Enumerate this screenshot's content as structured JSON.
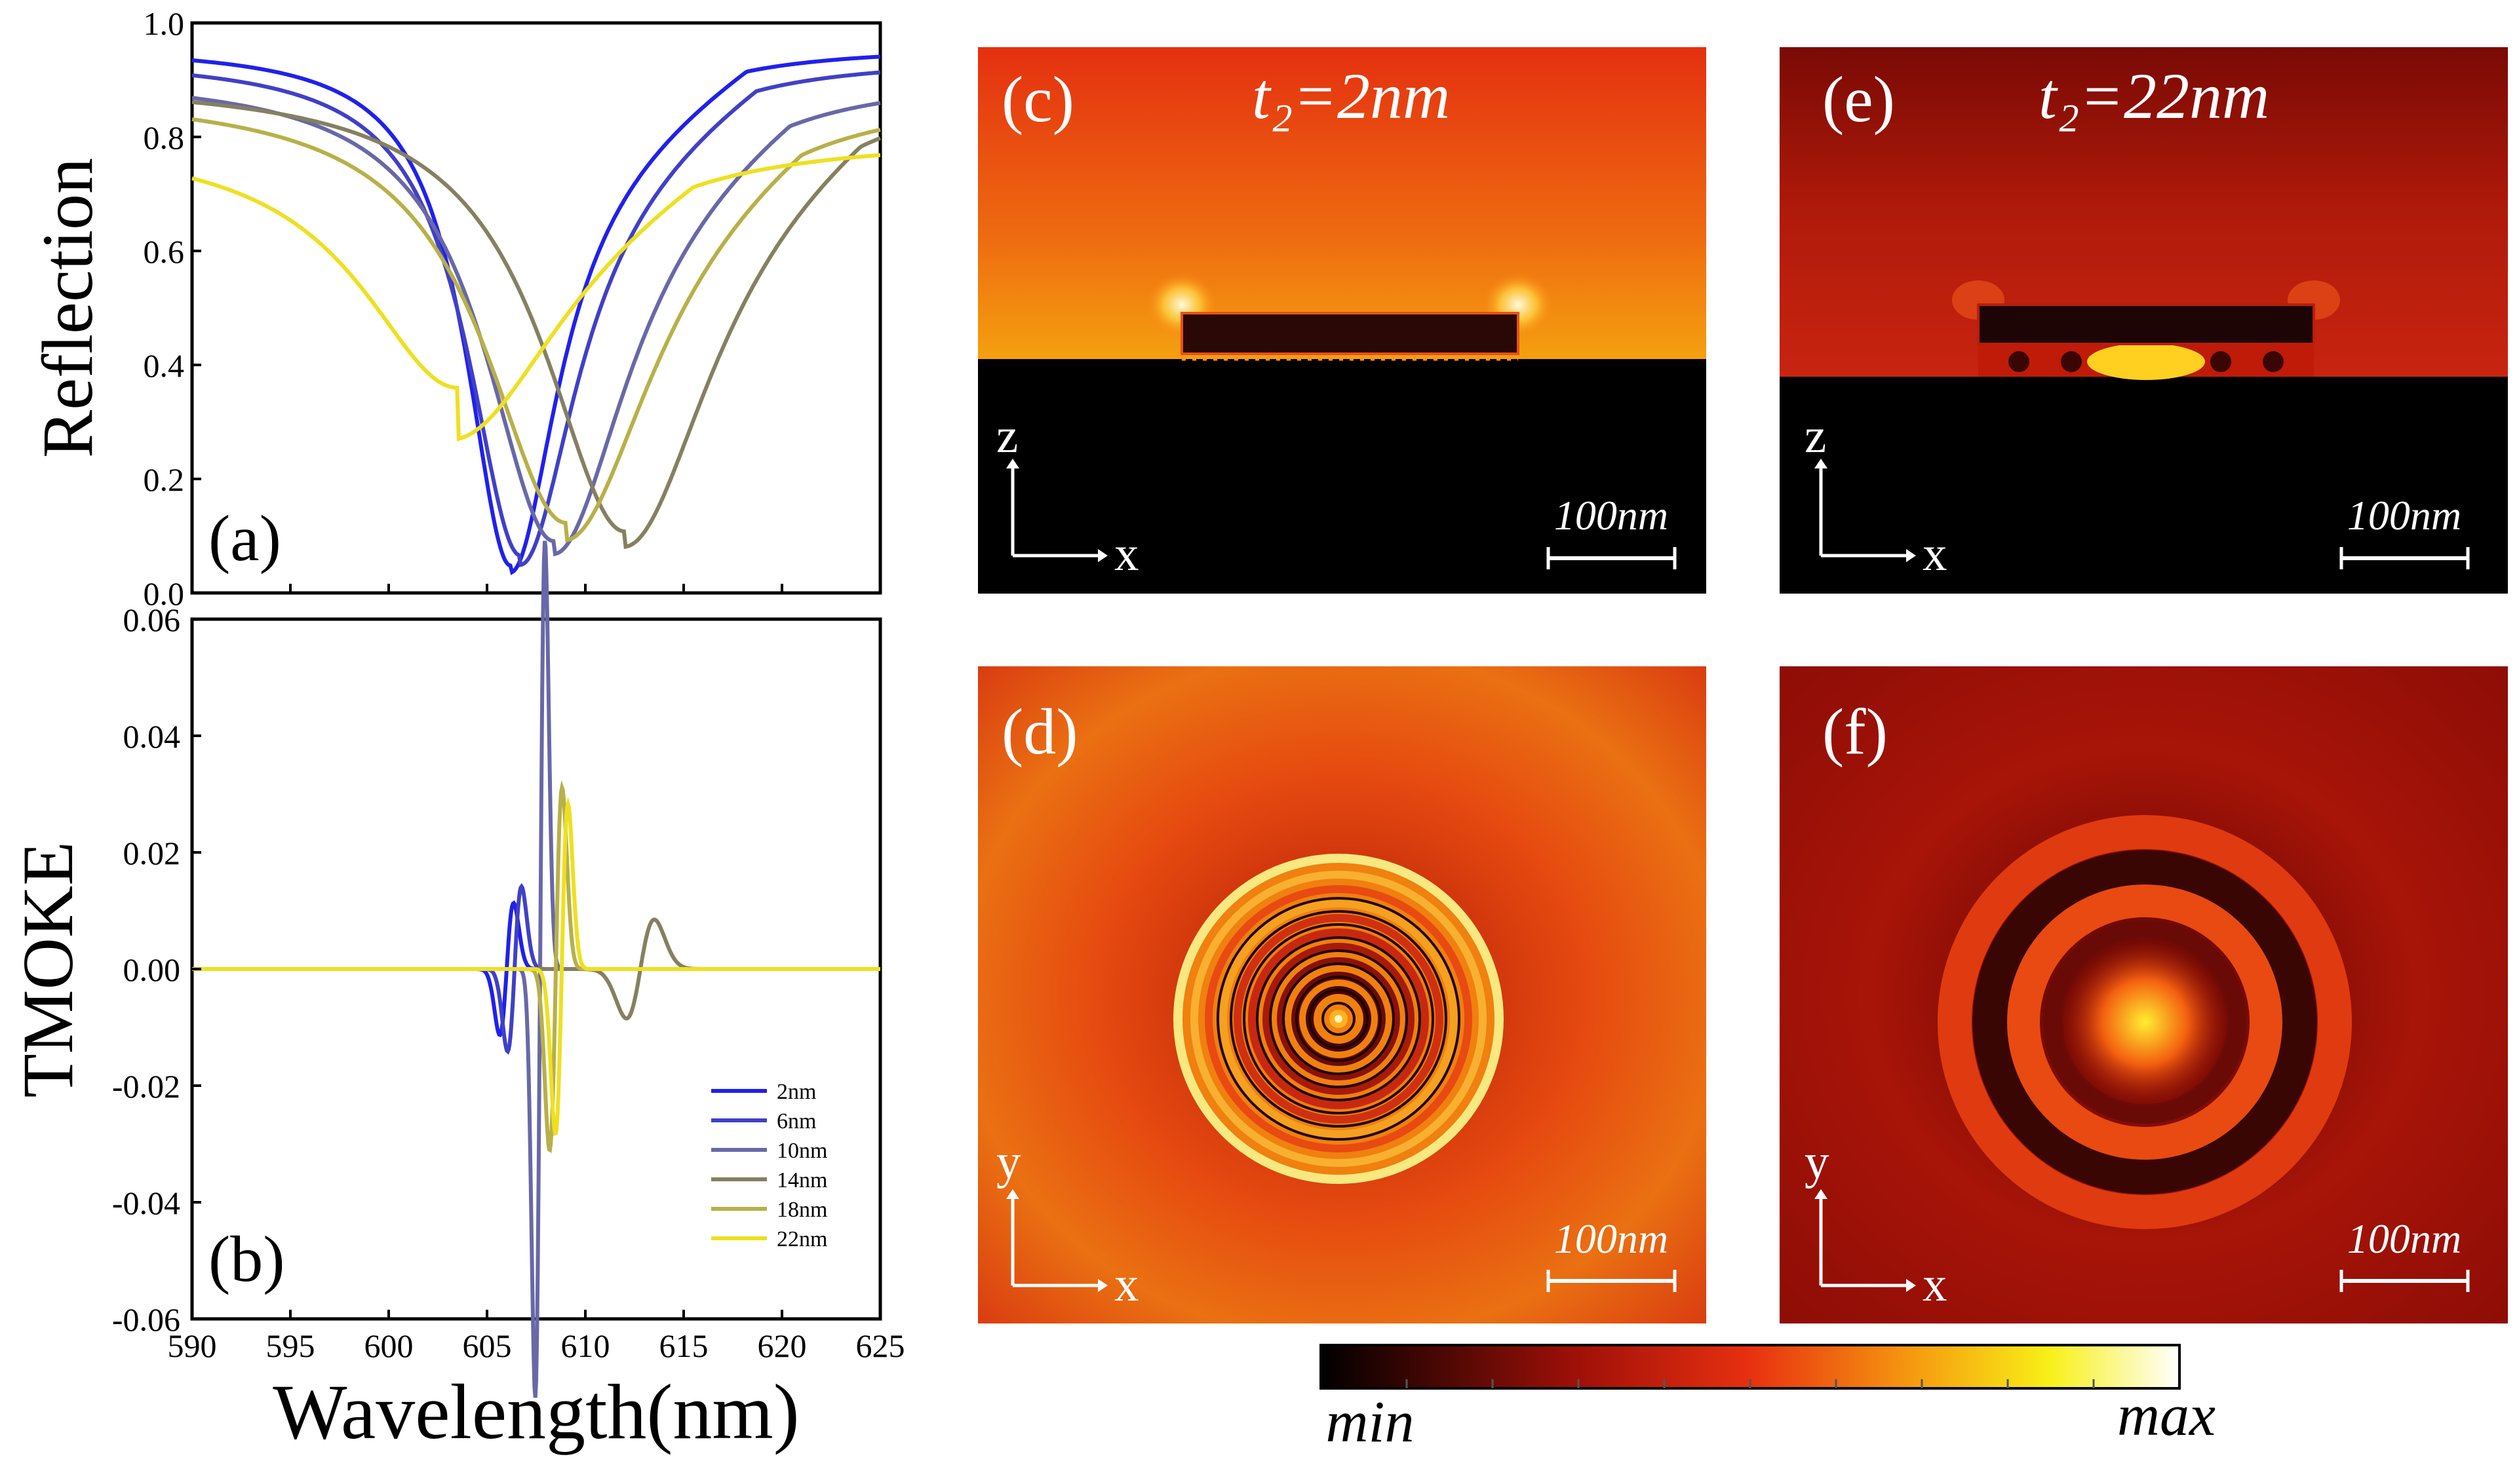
{
  "chart_data": [
    {
      "id": "a",
      "type": "line",
      "panel_label": "(a)",
      "ylabel": "Reflection",
      "xlabel": "Wavelength(nm)",
      "xlim": [
        590,
        625
      ],
      "ylim": [
        0.0,
        1.0
      ],
      "x_ticks": [
        590,
        595,
        600,
        605,
        610,
        615,
        620,
        625
      ],
      "y_ticks": [
        "0.0",
        "0.2",
        "0.4",
        "0.6",
        "0.8",
        "1.0"
      ],
      "series": [
        {
          "name": "2nm",
          "color": "#2020ee",
          "dip_x": 606.2,
          "dip_depth": 0.95,
          "fwhm": 5.5,
          "base": 0.96
        },
        {
          "name": "6nm",
          "color": "#4040c8",
          "dip_x": 606.7,
          "dip_depth": 0.93,
          "fwhm": 6.5,
          "base": 0.94
        },
        {
          "name": "10nm",
          "color": "#6868a8",
          "dip_x": 608.4,
          "dip_depth": 0.9,
          "fwhm": 8.5,
          "base": 0.91
        },
        {
          "name": "14nm",
          "color": "#858060",
          "dip_x": 612.0,
          "dip_depth": 0.88,
          "fwhm": 10.0,
          "base": 0.9
        },
        {
          "name": "18nm",
          "color": "#b8b048",
          "dip_x": 609.0,
          "dip_depth": 0.86,
          "fwhm": 10.0,
          "base": 0.88
        },
        {
          "name": "22nm",
          "color": "#eee020",
          "dip_x": 603.5,
          "dip_depth": 0.55,
          "fwhm": 12.0,
          "base": 0.8
        }
      ]
    },
    {
      "id": "b",
      "type": "line",
      "panel_label": "(b)",
      "ylabel": "TMOKE",
      "xlabel": "Wavelength(nm)",
      "xlim": [
        590,
        625
      ],
      "ylim": [
        -0.06,
        0.06
      ],
      "x_ticks": [
        "590",
        "595",
        "600",
        "605",
        "610",
        "615",
        "620",
        "625"
      ],
      "y_ticks": [
        "-0.06",
        "-0.04",
        "-0.02",
        "0.00",
        "0.02",
        "0.04",
        "0.06"
      ],
      "legend_position": "bottom-right",
      "series": [
        {
          "name": "2nm",
          "color": "#2020ee",
          "x0": 606.0,
          "amp": 0.008,
          "w": 0.5
        },
        {
          "name": "6nm",
          "color": "#4040c8",
          "x0": 606.4,
          "amp": 0.01,
          "w": 0.5
        },
        {
          "name": "10nm",
          "color": "#6868a8",
          "x0": 607.7,
          "amp": 0.052,
          "w": 0.35
        },
        {
          "name": "14nm",
          "color": "#858060",
          "x0": 612.8,
          "amp": 0.006,
          "w": 1.0
        },
        {
          "name": "18nm",
          "color": "#b8b048",
          "x0": 608.5,
          "amp": 0.022,
          "w": 0.45
        },
        {
          "name": "22nm",
          "color": "#eee020",
          "x0": 608.8,
          "amp": 0.02,
          "w": 0.45
        }
      ]
    }
  ],
  "field_maps": {
    "c": {
      "label": "(c)",
      "title": "t₂=2nm",
      "axis_v": "z",
      "axis_h": "x",
      "scale": "100nm"
    },
    "e": {
      "label": "(e)",
      "title": "t₂=22nm",
      "axis_v": "z",
      "axis_h": "x",
      "scale": "100nm"
    },
    "d": {
      "label": "(d)",
      "axis_v": "y",
      "axis_h": "x",
      "scale": "100nm"
    },
    "f": {
      "label": "(f)",
      "axis_v": "y",
      "axis_h": "x",
      "scale": "100nm"
    }
  },
  "colorbar": {
    "min_label": "min",
    "max_label": "max"
  },
  "colors": {
    "cmap_min": "#000000",
    "cmap_mid": "#d81818",
    "cmap_high": "#f8e010",
    "cmap_max": "#ffffff"
  }
}
